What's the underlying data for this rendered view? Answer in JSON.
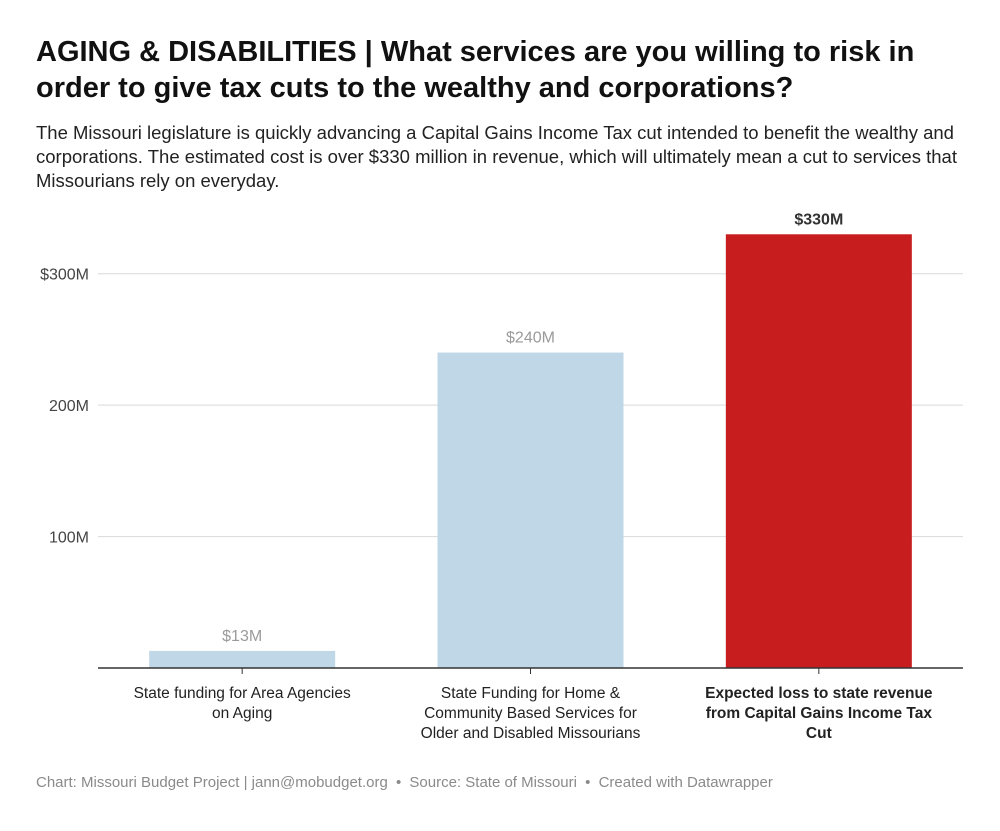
{
  "title": "AGING & DISABILITIES | What services are you willing to risk in order to give tax cuts to the wealthy and corporations?",
  "subtitle": "The Missouri legislature is quickly advancing a Capital Gains Income Tax cut intended to benefit the wealthy and corporations. The estimated cost is over $330 million in revenue, which will ultimately mean a cut to services that Missourians rely on everyday.",
  "chart_data": {
    "type": "bar",
    "categories": [
      "State funding for Area Agencies on Aging",
      "State Funding for Home & Community Based Services for Older and Disabled Missourians",
      "Expected loss to state revenue from Capital Gains Income Tax Cut"
    ],
    "category_lines": [
      [
        "State funding for Area Agencies",
        "on Aging"
      ],
      [
        "State Funding for Home &",
        "Community Based Services for",
        "Older and Disabled Missourians"
      ],
      [
        "Expected loss to state revenue",
        "from Capital Gains Income Tax",
        "Cut"
      ]
    ],
    "values": [
      13,
      240,
      330
    ],
    "value_labels": [
      "$13M",
      "$240M",
      "$330M"
    ],
    "unit": "million USD",
    "ylim": [
      0,
      330
    ],
    "yticks": [
      100,
      200,
      300
    ],
    "ytick_labels": [
      "100M",
      "200M",
      "$300M"
    ],
    "colors": [
      "#bfd7e6",
      "#bfd7e6",
      "#c81d1f"
    ],
    "highlight_index": 2,
    "grid": true,
    "xlabel": "",
    "ylabel": ""
  },
  "footer": {
    "chart_credit": "Chart: Missouri Budget Project | jann@mobudget.org",
    "source": "Source: State of Missouri",
    "created_with": "Created with Datawrapper",
    "separator": "•"
  }
}
